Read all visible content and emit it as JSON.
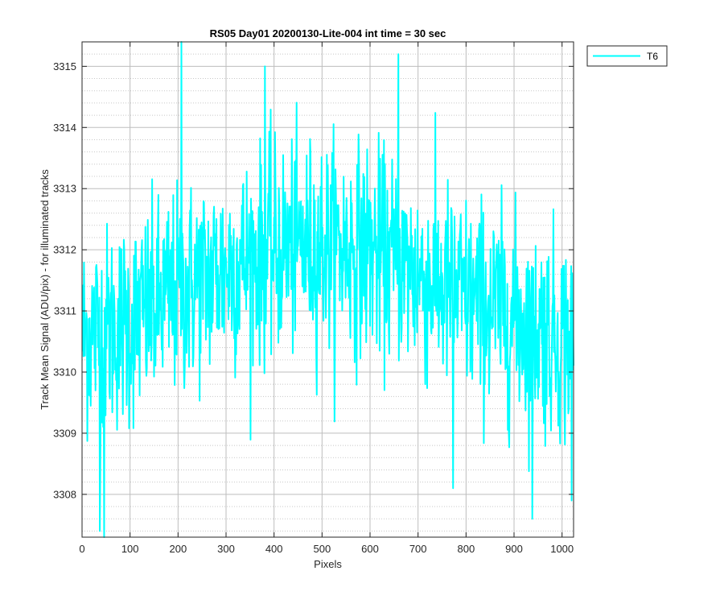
{
  "chart_data": {
    "type": "line",
    "title": "RS05 Day01 20200130-Lite-004 int time = 30 sec",
    "xlabel": "Pixels",
    "ylabel": "Track Mean Signal (ADU/pix) - for illuminated tracks",
    "xlim": [
      0,
      1024
    ],
    "ylim": [
      3307.3,
      3315.4
    ],
    "xticks": [
      0,
      100,
      200,
      300,
      400,
      500,
      600,
      700,
      800,
      900,
      1000
    ],
    "yticks": [
      3308,
      3309,
      3310,
      3311,
      3312,
      3313,
      3314,
      3315
    ],
    "xtick_labels": [
      "0",
      "100",
      "200",
      "300",
      "400",
      "500",
      "600",
      "700",
      "800",
      "900",
      "1000"
    ],
    "ytick_labels": [
      "3308",
      "3309",
      "3310",
      "3311",
      "3312",
      "3313",
      "3314",
      "3315"
    ],
    "grid": true,
    "minor_grid": true,
    "legend": {
      "position": "top-right-outside",
      "entries": [
        "T6"
      ]
    },
    "series": [
      {
        "name": "T6",
        "color": "#00ffff",
        "x_start": 1,
        "x_step": 1,
        "points": 1024,
        "trend": {
          "x": [
            0,
            100,
            200,
            300,
            400,
            500,
            600,
            700,
            800,
            900,
            1024
          ],
          "y": [
            3310.6,
            3310.8,
            3311.3,
            3311.7,
            3312.0,
            3312.1,
            3312.0,
            3311.6,
            3311.2,
            3310.9,
            3310.5
          ]
        },
        "noise_sd": 0.85,
        "y_min": 3307.3,
        "y_max": 3315.4,
        "notable_points": [
          {
            "x": 46,
            "y": 3307.3
          },
          {
            "x": 37,
            "y": 3307.4
          },
          {
            "x": 207,
            "y": 3315.4
          },
          {
            "x": 381,
            "y": 3315.0
          },
          {
            "x": 659,
            "y": 3315.2
          },
          {
            "x": 773,
            "y": 3308.1
          },
          {
            "x": 938,
            "y": 3307.6
          },
          {
            "x": 1020,
            "y": 3307.9
          }
        ]
      }
    ]
  }
}
